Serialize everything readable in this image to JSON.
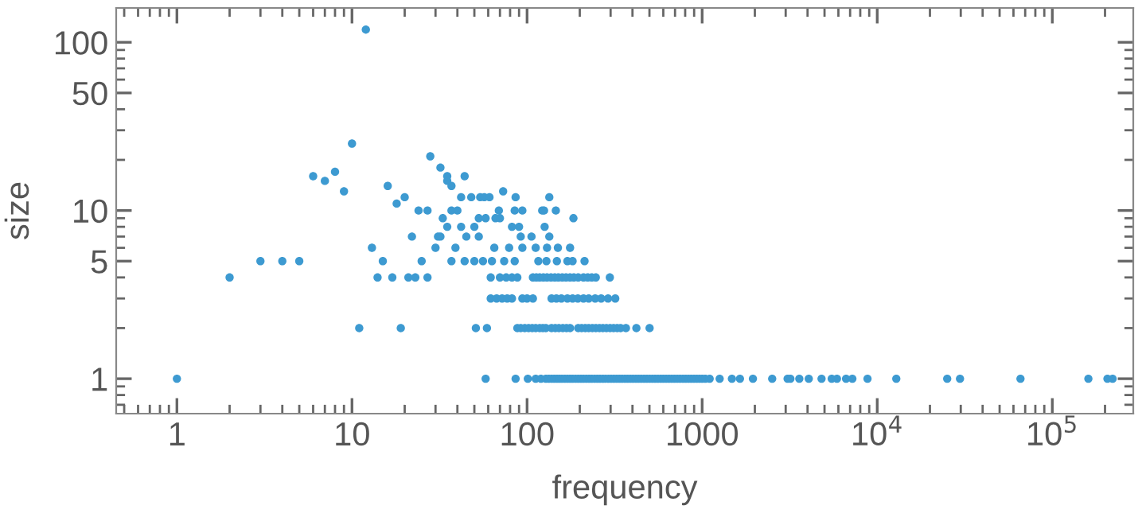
{
  "chart_data": {
    "type": "scatter",
    "xlabel": "frequency",
    "ylabel": "size",
    "log": "xy",
    "marker": "circle",
    "grid": false,
    "xlim": [
      0.45,
      290000
    ],
    "ylim": [
      0.62,
      160
    ],
    "xticks": [
      1,
      10,
      100,
      1000,
      {
        "value": 10000,
        "label": "10$^{4}$"
      },
      {
        "value": 100000,
        "label": "10$^{5}$"
      }
    ],
    "yticks": [
      1,
      5,
      10,
      50,
      100
    ],
    "series": [
      {
        "color": "#3d9ad1",
        "x": [
          1,
          58,
          86,
          101,
          112,
          120,
          128,
          133,
          138,
          143,
          148,
          153,
          158,
          164,
          170,
          176,
          182,
          189,
          196,
          203,
          210,
          218,
          226,
          234,
          243,
          252,
          261,
          271,
          281,
          291,
          302,
          313,
          325,
          337,
          349,
          362,
          375,
          389,
          403,
          418,
          433,
          449,
          466,
          483,
          501,
          520,
          539,
          559,
          580,
          601,
          623,
          646,
          670,
          695,
          721,
          748,
          776,
          805,
          835,
          866,
          898,
          931,
          966,
          1002,
          1043,
          1104,
          1259,
          1479,
          1644,
          1950,
          2512,
          3076,
          3192,
          3589,
          4064,
          4808,
          5495,
          5888,
          6637,
          7211,
          8800,
          12850,
          25100,
          29700,
          65800,
          160700,
          206500,
          221000,
          11,
          19,
          51,
          59,
          88,
          92,
          97,
          102,
          107,
          112,
          118,
          123,
          128,
          138,
          145,
          152,
          160,
          168,
          176,
          196,
          205,
          215,
          225,
          236,
          247,
          259,
          271,
          284,
          298,
          312,
          327,
          342,
          367,
          421,
          501,
          62,
          67,
          72,
          77,
          82,
          94,
          100,
          108,
          138,
          147,
          157,
          170,
          182,
          195,
          210,
          225,
          245,
          265,
          290,
          319,
          2,
          14,
          17,
          21,
          23,
          27,
          62,
          70,
          76,
          82,
          88,
          108,
          113,
          118,
          124,
          130,
          137,
          144,
          151,
          159,
          167,
          176,
          185,
          196,
          210,
          222,
          234,
          247,
          297,
          3,
          4,
          5,
          15,
          25,
          37,
          44,
          50,
          56,
          63,
          74,
          85,
          116,
          129,
          148,
          170,
          182,
          213,
          13,
          30,
          39,
          65,
          79,
          94,
          112,
          130,
          150,
          176,
          22,
          31,
          32,
          45,
          53,
          92,
          106,
          134,
          35,
          42,
          50,
          82,
          90,
          126,
          33,
          53,
          58,
          66,
          70,
          184,
          24,
          27,
          37,
          40,
          69,
          85,
          94,
          122,
          125,
          146,
          18,
          20,
          42,
          48,
          54,
          57,
          61,
          86,
          134,
          9,
          73,
          16,
          37,
          7,
          35,
          6,
          44,
          35,
          8,
          32,
          28,
          10,
          12
        ],
        "values": [
          1,
          1,
          1,
          1,
          1,
          1,
          1,
          1,
          1,
          1,
          1,
          1,
          1,
          1,
          1,
          1,
          1,
          1,
          1,
          1,
          1,
          1,
          1,
          1,
          1,
          1,
          1,
          1,
          1,
          1,
          1,
          1,
          1,
          1,
          1,
          1,
          1,
          1,
          1,
          1,
          1,
          1,
          1,
          1,
          1,
          1,
          1,
          1,
          1,
          1,
          1,
          1,
          1,
          1,
          1,
          1,
          1,
          1,
          1,
          1,
          1,
          1,
          1,
          1,
          1,
          1,
          1,
          1,
          1,
          1,
          1,
          1,
          1,
          1,
          1,
          1,
          1,
          1,
          1,
          1,
          1,
          1,
          1,
          1,
          1,
          1,
          1,
          1,
          2,
          2,
          2,
          2,
          2,
          2,
          2,
          2,
          2,
          2,
          2,
          2,
          2,
          2,
          2,
          2,
          2,
          2,
          2,
          2,
          2,
          2,
          2,
          2,
          2,
          2,
          2,
          2,
          2,
          2,
          2,
          2,
          2,
          2,
          2,
          3,
          3,
          3,
          3,
          3,
          3,
          3,
          3,
          3,
          3,
          3,
          3,
          3,
          3,
          3,
          3,
          3,
          3,
          3,
          3,
          4,
          4,
          4,
          4,
          4,
          4,
          4,
          4,
          4,
          4,
          4,
          4,
          4,
          4,
          4,
          4,
          4,
          4,
          4,
          4,
          4,
          4,
          4,
          4,
          4,
          4,
          4,
          4,
          4,
          5,
          5,
          5,
          5,
          5,
          5,
          5,
          5,
          5,
          5,
          5,
          5,
          5,
          5,
          5,
          5,
          5,
          5,
          6,
          6,
          6,
          6,
          6,
          6,
          6,
          6,
          6,
          6,
          7,
          7,
          7,
          7,
          7,
          7,
          7,
          7,
          8,
          8,
          8,
          8,
          8,
          8,
          9,
          9,
          9,
          9,
          9,
          9,
          10,
          10,
          10,
          10,
          10,
          10,
          10,
          10,
          10,
          10,
          11,
          12,
          12,
          12,
          12,
          12,
          12,
          12,
          12,
          13,
          13,
          14,
          14,
          15,
          15,
          16,
          16,
          16,
          17,
          18,
          21,
          25,
          119
        ]
      }
    ]
  }
}
